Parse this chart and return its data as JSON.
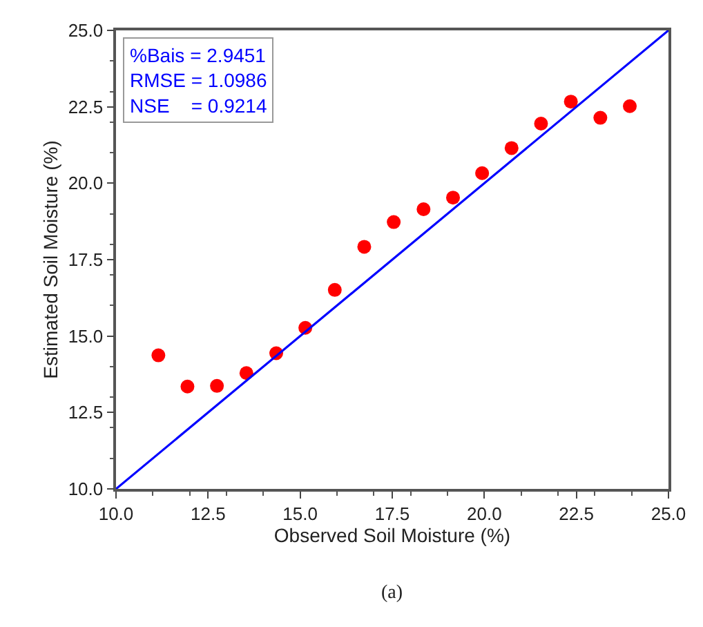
{
  "chart_data": {
    "type": "scatter",
    "xlabel": "Observed Soil Moisture (%)",
    "ylabel": "Estimated Soil Moisture (%)",
    "xlim": [
      10,
      25
    ],
    "ylim": [
      10,
      25
    ],
    "xticks": [
      {
        "value": 10,
        "label": "10.0"
      },
      {
        "value": 12.5,
        "label": "12.5"
      },
      {
        "value": 15,
        "label": "15.0"
      },
      {
        "value": 17.5,
        "label": "17.5"
      },
      {
        "value": 20,
        "label": "20.0"
      },
      {
        "value": 22.5,
        "label": "22.5"
      },
      {
        "value": 25,
        "label": "25.0"
      }
    ],
    "yticks": [
      {
        "value": 10,
        "label": "10.0"
      },
      {
        "value": 12.5,
        "label": "12.5"
      },
      {
        "value": 15,
        "label": "15.0"
      },
      {
        "value": 17.5,
        "label": "17.5"
      },
      {
        "value": 20,
        "label": "20.0"
      },
      {
        "value": 22.5,
        "label": "22.5"
      },
      {
        "value": 25,
        "label": "25.0"
      }
    ],
    "marker": "circle",
    "series": [
      {
        "color": "#ff0000",
        "x": [
          11.15,
          11.94,
          12.74,
          13.54,
          14.35,
          15.14,
          15.94,
          16.74,
          17.54,
          18.35,
          19.15,
          19.94,
          20.74,
          21.54,
          22.35,
          23.15,
          23.95
        ],
        "values": [
          14.37,
          13.35,
          13.37,
          13.79,
          14.44,
          15.27,
          16.51,
          17.92,
          18.73,
          19.15,
          19.53,
          20.33,
          21.15,
          21.95,
          22.67,
          22.14,
          22.52
        ]
      },
      {
        "type": "line",
        "color": "#0000ff",
        "x": [
          10,
          25
        ],
        "values": [
          10,
          25
        ],
        "marker": "none",
        "line_style": "solid"
      }
    ],
    "annotations": [
      "%Bais = 2.9451\nRMSE = 1.0986\nNSE    = 0.9214",
      "(a)"
    ]
  }
}
